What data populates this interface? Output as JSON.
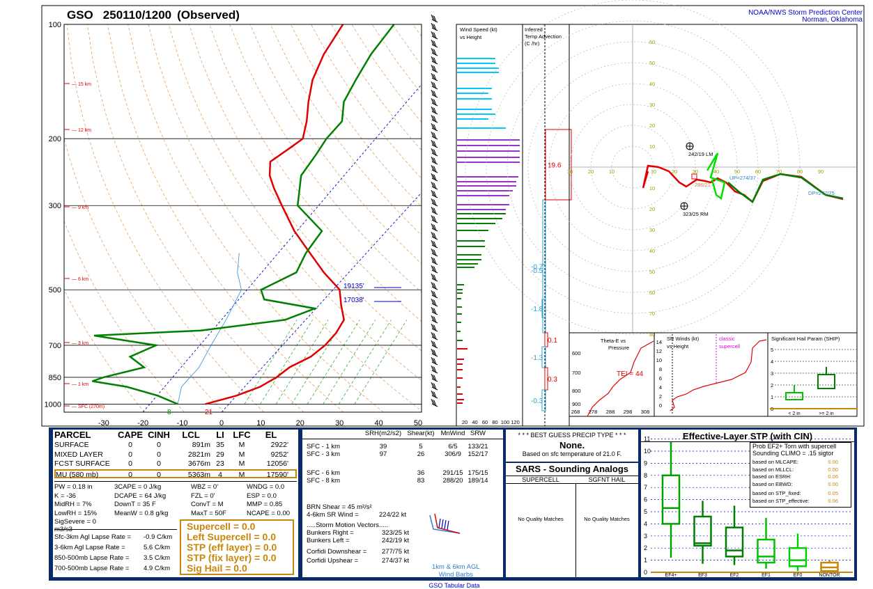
{
  "header": {
    "station": "GSO",
    "time": "250110/1200",
    "obs": "(Observed)",
    "org1": "NOAA/NWS Storm Prediction Center",
    "org2": "Norman, Oklahoma"
  },
  "colors": {
    "temp": "#e00000",
    "dewpt": "#008000",
    "wind_cyan": "#00c8ff",
    "wind_purple": "#9932cc",
    "wind_green": "#008000",
    "wind_red": "#e00000",
    "gold": "#c8860a",
    "blue": "#0000c8",
    "navy": "#0a2a6a"
  },
  "chart_data": [
    {
      "type": "line",
      "title": "GSO 250110/1200 (Observed)",
      "xlabel": "",
      "ylabel": "",
      "x_ticks": [
        -30,
        -20,
        -10,
        0,
        10,
        20,
        30,
        40,
        50
      ],
      "p_ticks": [
        100,
        200,
        300,
        500,
        700,
        850,
        1000
      ],
      "height_labels": [
        "15 km",
        "12 km",
        "9 km",
        "6 km",
        "3 km",
        "1 km",
        "SFC (270m)"
      ],
      "ylim": [
        100,
        1050
      ],
      "xlim": [
        -40,
        50
      ],
      "series": [
        {
          "name": "Temperature",
          "points": [
            [
              1000,
              -6
            ],
            [
              950,
              0
            ],
            [
              900,
              4
            ],
            [
              850,
              6
            ],
            [
              800,
              7
            ],
            [
              750,
              10
            ],
            [
              700,
              11
            ],
            [
              650,
              11
            ],
            [
              600,
              10
            ],
            [
              550,
              6
            ],
            [
              500,
              2
            ],
            [
              450,
              -6
            ],
            [
              400,
              -14
            ],
            [
              350,
              -23
            ],
            [
              300,
              -32
            ],
            [
              270,
              -38
            ],
            [
              250,
              -42
            ],
            [
              230,
              -45
            ],
            [
              210,
              -43
            ],
            [
              200,
              -42
            ],
            [
              180,
              -45
            ],
            [
              160,
              -49
            ],
            [
              140,
              -53
            ],
            [
              120,
              -56
            ],
            [
              100,
              -58
            ]
          ]
        },
        {
          "name": "Dewpoint",
          "points": [
            [
              1000,
              -13
            ],
            [
              950,
              -20
            ],
            [
              900,
              -30
            ],
            [
              870,
              -40
            ],
            [
              850,
              -38
            ],
            [
              800,
              -30
            ],
            [
              750,
              -36
            ],
            [
              700,
              -32
            ],
            [
              660,
              -50
            ],
            [
              640,
              -24
            ],
            [
              600,
              -5
            ],
            [
              560,
              0
            ],
            [
              530,
              -15
            ],
            [
              500,
              -18
            ],
            [
              450,
              -13
            ],
            [
              400,
              -15
            ],
            [
              350,
              -16
            ],
            [
              300,
              -28
            ],
            [
              250,
              -34
            ],
            [
              220,
              -35
            ],
            [
              200,
              -36
            ],
            [
              180,
              -36
            ],
            [
              160,
              -40
            ],
            [
              140,
              -42
            ],
            [
              120,
              -44
            ],
            [
              100,
              -45
            ]
          ]
        }
      ],
      "annotations": [
        "19135'",
        "17038'",
        "8",
        "21"
      ]
    },
    {
      "type": "bar",
      "title": "Wind Speed (kt) vs Height",
      "x_ticks": [
        20,
        40,
        60,
        80,
        100,
        120
      ]
    },
    {
      "type": "line",
      "title": "Inferred Temp Advection (C /hr)",
      "values": [
        19.6,
        -0.7,
        -0.5,
        -1.8,
        0.1,
        -1.3,
        0.3,
        -0.3
      ]
    },
    {
      "type": "line",
      "title": "Hodograph",
      "rings": [
        10,
        20,
        30,
        40,
        50,
        60,
        70,
        80
      ],
      "labels": [
        "242/19 LM",
        "323/25 RM",
        "UP=274/37",
        "DP=277/75",
        "286/21"
      ],
      "points_kt": [
        [
          0,
          0
        ],
        [
          0.2,
          0.3
        ],
        [
          0.5,
          0.7
        ],
        [
          1,
          1
        ],
        [
          2,
          0.5
        ],
        [
          3,
          1
        ],
        [
          4,
          0.8
        ],
        [
          5,
          1.5
        ],
        [
          6,
          1.2
        ],
        [
          8,
          2
        ],
        [
          10,
          1
        ]
      ]
    },
    {
      "type": "line",
      "title": "Theta-E vs Pressure",
      "x_ticks": [
        268,
        278,
        288,
        298,
        308
      ],
      "p_ticks": [
        600,
        700,
        800,
        900
      ],
      "annotations": [
        "TEI = 44"
      ]
    },
    {
      "type": "line",
      "title": "SR Winds (kt) vs Height",
      "y_ticks": [
        0,
        2,
        4,
        6,
        8,
        10,
        12,
        14
      ],
      "annotations": [
        "classic",
        "supercell"
      ]
    },
    {
      "type": "bar",
      "title": "Significant Hail Param (SHIP)",
      "y_ticks": [
        0,
        1,
        2,
        3,
        4,
        5
      ],
      "categories": [
        "< 2 in",
        ">= 2 in"
      ]
    },
    {
      "type": "bar",
      "title": "Effective-Layer STP (with CIN)",
      "categories": [
        "EF4+",
        "EF3",
        "EF2",
        "EF1",
        "EF0",
        "NONTOR"
      ],
      "ylim": [
        0,
        11
      ],
      "boxes": [
        [
          1.2,
          4.0,
          5.3,
          8.0,
          10.8
        ],
        [
          0.7,
          2.2,
          2.4,
          4.6,
          5.9
        ],
        [
          0.6,
          1.3,
          1.8,
          3.7,
          5.5
        ],
        [
          0.3,
          0.8,
          1.3,
          2.7,
          4.5
        ],
        [
          0.1,
          0.5,
          1.0,
          2.0,
          3.2
        ],
        [
          0.0,
          0.1,
          0.4,
          0.8,
          1.0
        ]
      ]
    }
  ],
  "parcel": {
    "headers": [
      "PARCEL",
      "CAPE",
      "CINH",
      "LCL",
      "LI",
      "LFC",
      "EL"
    ],
    "rows": [
      [
        "SURFACE",
        "0",
        "0",
        "891m",
        "35",
        "M",
        "2922'"
      ],
      [
        "MIXED LAYER",
        "0",
        "0",
        "2821m",
        "29",
        "M",
        "9252'"
      ],
      [
        "FCST SURFACE",
        "0",
        "0",
        "3676m",
        "23",
        "M",
        "12056'"
      ],
      [
        "MU (580 mb)",
        "0",
        "0",
        "5363m",
        "4",
        "M",
        "17590'"
      ]
    ]
  },
  "params": [
    [
      "PW = 0.18 in",
      "3CAPE = 0 J/kg",
      "WBZ = 0'",
      "WNDG = 0.0"
    ],
    [
      "K = -36",
      "DCAPE = 64 J/kg",
      "FZL = 0'",
      "ESP = 0.0"
    ],
    [
      "MidRH = 7%",
      "DownT = 35 F",
      "ConvT = M",
      "MMP = 0.85"
    ],
    [
      "LowRH = 15%",
      "MeanW = 0.8 g/kg",
      "MaxT = 50F",
      "NCAPE = 0.00"
    ],
    [
      "SigSevere = 0 m3/s3",
      "",
      "",
      ""
    ]
  ],
  "lapse": [
    [
      "Sfc-3km Agl Lapse Rate =",
      "-0.9 C/km"
    ],
    [
      "3-6km Agl Lapse Rate =",
      "5.6 C/km"
    ],
    [
      "850-500mb Lapse Rate =",
      "3.5 C/km"
    ],
    [
      "700-500mb Lapse Rate =",
      "4.9 C/km"
    ]
  ],
  "gold_box": [
    "Supercell = 0.0",
    "Left Supercell = 0.0",
    "STP (eff layer) = 0.0",
    "STP (fix layer) = 0.0",
    "Sig Hail = 0.0"
  ],
  "kin_headers": [
    "SRH(m2/s2)",
    "Shear(kt)",
    "MnWind",
    "SRW"
  ],
  "kin_rows": [
    [
      "SFC - 1 km",
      "39",
      "5",
      "6/5",
      "133/21"
    ],
    [
      "SFC - 3 km",
      "97",
      "26",
      "306/9",
      "152/17"
    ],
    [
      "SFC - 6 km",
      "",
      "36",
      "291/15",
      "175/15"
    ],
    [
      "SFC - 8 km",
      "",
      "83",
      "288/20",
      "189/14"
    ]
  ],
  "brn": [
    "BRN Shear = 45 m²/s²",
    "4-6km SR Wind =",
    "224/22 kt"
  ],
  "storm_title": ".....Storm Motion Vectors.....",
  "storm": [
    [
      "Bunkers Right =",
      "323/25 kt"
    ],
    [
      "Bunkers Left =",
      "242/19 kt"
    ],
    [
      "Corfidi Downshear =",
      "277/75 kt"
    ],
    [
      "Corfidi Upshear =",
      "274/37 kt"
    ]
  ],
  "barbs_label": [
    "1km & 6km AGL",
    "Wind Barbs"
  ],
  "precip": {
    "title": "* * * BEST GUESS PRECIP TYPE * * *",
    "value": "None.",
    "note": "Based on sfc temperature of 21.0 F."
  },
  "sars": {
    "title": "SARS - Sounding Analogs",
    "col1": "SUPERCELL",
    "col2": "SGFNT HAIL",
    "m1": "No Quality Matches",
    "m2": "No Quality Matches"
  },
  "stp": {
    "title": "Effective-Layer STP (with CIN)",
    "prob1": "Prob EF2+ Torn with supercell",
    "prob2": "Sounding CLIMO = .15 sigtor",
    "rows": [
      [
        "based on MLCAPE:",
        "0.00"
      ],
      [
        "based on MLLCL:",
        "0.00"
      ],
      [
        "based on ESRH:",
        "0.06"
      ],
      [
        "based on EBWD:",
        "0.00"
      ],
      [
        "based on STP_fixed:",
        "0.05"
      ],
      [
        "based on STP_effective:",
        "0.06"
      ]
    ]
  },
  "footer": "GSO Tabular Data"
}
